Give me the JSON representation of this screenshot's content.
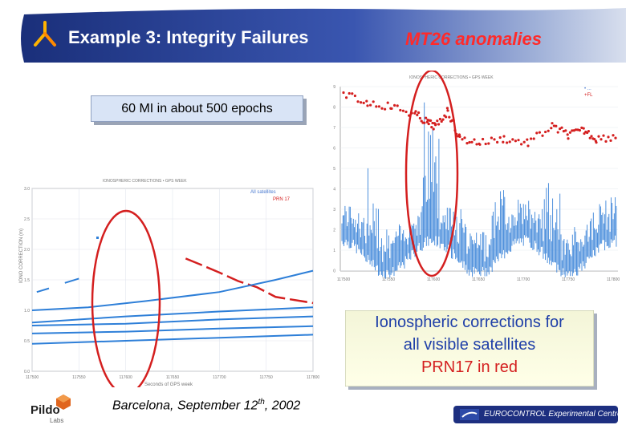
{
  "header": {
    "title": "Example 3: Integrity Failures",
    "subtitle": "MT26 anomalies"
  },
  "callout": {
    "text": "60 MI in about 500 epochs"
  },
  "iono_box": {
    "line1": "Ionospheric corrections for",
    "line2": "all visible satellites",
    "line3": "PRN17 in red"
  },
  "footer": {
    "location_prefix": "Barcelona, September 12",
    "location_sup": "th",
    "location_suffix": ", 2002",
    "pildo_name": "Pildo",
    "pildo_sub": "Labs",
    "eurocontrol": "EUROCONTROL Experimental Centre"
  },
  "colors": {
    "header_blue": "#243a8c",
    "accent_red": "#d41f1f",
    "series_blue": "#2e7fd8",
    "iono_text_blue": "#1f3fa8"
  },
  "chart_data": [
    {
      "type": "line",
      "title": "",
      "xlabel": "Seconds of GPS week",
      "ylabel": "",
      "ylim": [
        0,
        3
      ],
      "x_ticks": [
        "117500",
        "117550",
        "117600",
        "117650",
        "117700",
        "117750",
        "117800"
      ],
      "legend": [
        "All satellites",
        "PRN 17"
      ],
      "legend_position": "top-right",
      "series": [
        {
          "name": "PRN 17",
          "color": "red",
          "points": [
            [
              117664,
              1.85
            ],
            [
              117680,
              1.75
            ],
            [
              117700,
              1.62
            ],
            [
              117720,
              1.48
            ],
            [
              117740,
              1.38
            ],
            [
              117760,
              1.22
            ],
            [
              117800,
              1.12
            ]
          ]
        },
        {
          "name": "All satellites",
          "color": "blue",
          "points": [
            [
              117500,
              1.0
            ],
            [
              117560,
              1.05
            ],
            [
              117620,
              1.15
            ],
            [
              117700,
              1.3
            ],
            [
              117760,
              1.5
            ],
            [
              117800,
              1.65
            ]
          ]
        },
        {
          "name": "",
          "color": "blue",
          "points": [
            [
              117500,
              0.8
            ],
            [
              117600,
              0.9
            ],
            [
              117700,
              0.98
            ],
            [
              117800,
              1.05
            ]
          ]
        },
        {
          "name": "",
          "color": "blue",
          "points": [
            [
              117500,
              0.75
            ],
            [
              117600,
              0.78
            ],
            [
              117700,
              0.85
            ],
            [
              117800,
              0.9
            ]
          ]
        },
        {
          "name": "",
          "color": "blue",
          "points": [
            [
              117500,
              0.62
            ],
            [
              117600,
              0.65
            ],
            [
              117700,
              0.7
            ],
            [
              117800,
              0.74
            ]
          ]
        },
        {
          "name": "",
          "color": "blue",
          "points": [
            [
              117500,
              0.45
            ],
            [
              117600,
              0.5
            ],
            [
              117700,
              0.55
            ],
            [
              117800,
              0.6
            ]
          ]
        }
      ],
      "annotation": "PRN 17 ellipse highlight"
    },
    {
      "type": "scatter",
      "title": "",
      "xlabel": "",
      "ylabel": "",
      "ylim": [
        0,
        10
      ],
      "legend_position": "top-right",
      "series": [
        {
          "name": "PRN 17",
          "color": "red"
        },
        {
          "name": "",
          "color": "blue"
        }
      ],
      "annotation": "MT26 anomaly ellipse highlight"
    }
  ]
}
